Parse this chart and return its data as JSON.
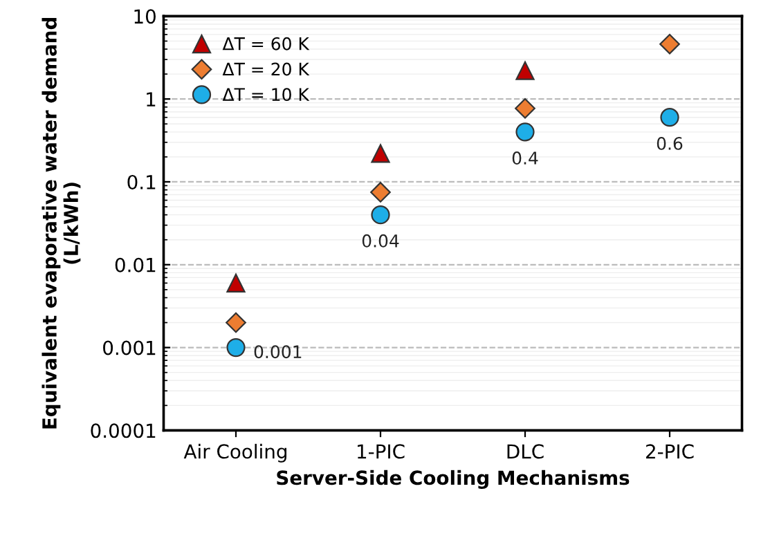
{
  "chart_data": {
    "type": "scatter",
    "xlabel": "Server-Side Cooling Mechanisms",
    "ylabel": "Equivalent evaporative water demand\n(L/kWh)",
    "categories": [
      "Air Cooling",
      "1-PIC",
      "DLC",
      "2-PIC"
    ],
    "series": [
      {
        "name": "ΔT = 60 K",
        "color": "#c00000",
        "marker": "triangle",
        "values": [
          0.006,
          0.22,
          2.2,
          null
        ]
      },
      {
        "name": "ΔT = 20 K",
        "color": "#ed7d31",
        "marker": "diamond",
        "values": [
          0.002,
          0.075,
          0.77,
          4.6
        ]
      },
      {
        "name": "ΔT = 10 K",
        "color": "#1eaee8",
        "marker": "circle",
        "values": [
          0.001,
          0.04,
          0.4,
          0.6
        ],
        "value_labels": [
          "0.001",
          "0.04",
          "0.4",
          "0.6"
        ]
      }
    ],
    "log": "y",
    "ylim": [
      0.0001,
      10
    ],
    "yticks": [
      0.0001,
      0.001,
      0.01,
      0.1,
      1,
      10
    ],
    "grid": "y",
    "legend": "top left"
  }
}
